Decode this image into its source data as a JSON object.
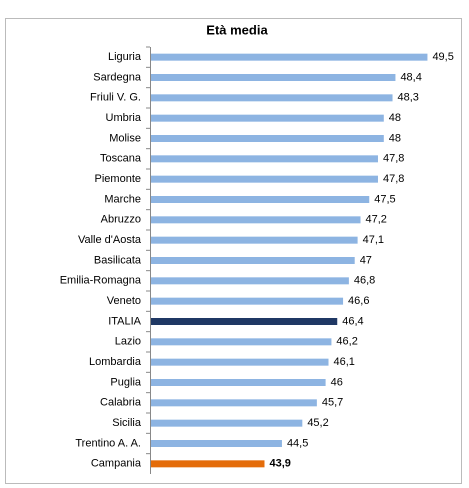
{
  "chart_data": {
    "type": "bar",
    "orientation": "horizontal",
    "title": "Età media",
    "categories": [
      "Liguria",
      "Sardegna",
      "Friuli V. G.",
      "Umbria",
      "Molise",
      "Toscana",
      "Piemonte",
      "Marche",
      "Abruzzo",
      "Valle d'Aosta",
      "Basilicata",
      "Emilia-Romagna",
      "Veneto",
      "ITALIA",
      "Lazio",
      "Lombardia",
      "Puglia",
      "Calabria",
      "Sicilia",
      "Trentino A. A.",
      "Campania"
    ],
    "values": [
      49.5,
      48.4,
      48.3,
      48,
      48,
      47.8,
      47.8,
      47.5,
      47.2,
      47.1,
      47,
      46.8,
      46.6,
      46.4,
      46.2,
      46.1,
      46,
      45.7,
      45.2,
      44.5,
      43.9
    ],
    "value_labels": [
      "49,5",
      "48,4",
      "48,3",
      "48",
      "48",
      "47,8",
      "47,8",
      "47,5",
      "47,2",
      "47,1",
      "47",
      "46,8",
      "46,6",
      "46,4",
      "46,2",
      "46,1",
      "46",
      "45,7",
      "45,2",
      "44,5",
      "43,9"
    ],
    "colors": [
      "#8db4e2",
      "#8db4e2",
      "#8db4e2",
      "#8db4e2",
      "#8db4e2",
      "#8db4e2",
      "#8db4e2",
      "#8db4e2",
      "#8db4e2",
      "#8db4e2",
      "#8db4e2",
      "#8db4e2",
      "#8db4e2",
      "#1f3864",
      "#8db4e2",
      "#8db4e2",
      "#8db4e2",
      "#8db4e2",
      "#8db4e2",
      "#8db4e2",
      "#e46c0a"
    ],
    "xlim": [
      40,
      50
    ]
  }
}
